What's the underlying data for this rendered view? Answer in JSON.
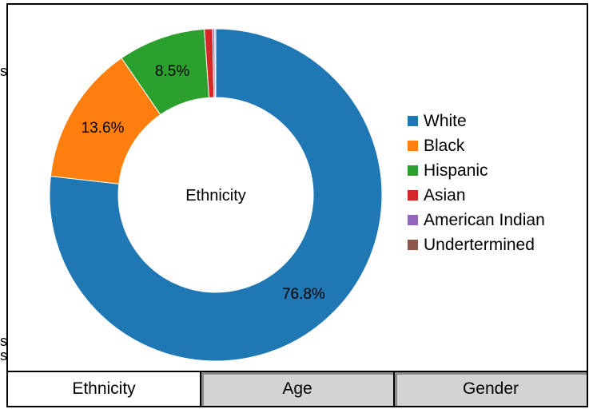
{
  "chart_data": {
    "type": "pie",
    "center_label": "Ethnicity",
    "slices": [
      {
        "label": "White",
        "value": 76.8,
        "value_label": "76.8%",
        "color": "#1f77b4"
      },
      {
        "label": "Black",
        "value": 13.6,
        "value_label": "13.6%",
        "color": "#ff7f0e"
      },
      {
        "label": "Hispanic",
        "value": 8.5,
        "value_label": "8.5%",
        "color": "#2ca02c"
      },
      {
        "label": "Asian",
        "value": 0.8,
        "value_label": "",
        "color": "#d62728"
      },
      {
        "label": "American Indian",
        "value": 0.2,
        "value_label": "",
        "color": "#9467bd"
      },
      {
        "label": "Undertermined",
        "value": 0.1,
        "value_label": "",
        "color": "#8c564b"
      }
    ],
    "legend_position": "right"
  },
  "tabs": {
    "items": [
      {
        "label": "Ethnicity",
        "active": true
      },
      {
        "label": "Age",
        "active": false
      },
      {
        "label": "Gender",
        "active": false
      }
    ]
  },
  "edge_glyphs": {
    "top": "s",
    "bottom_1": "s",
    "bottom_2": "s"
  }
}
